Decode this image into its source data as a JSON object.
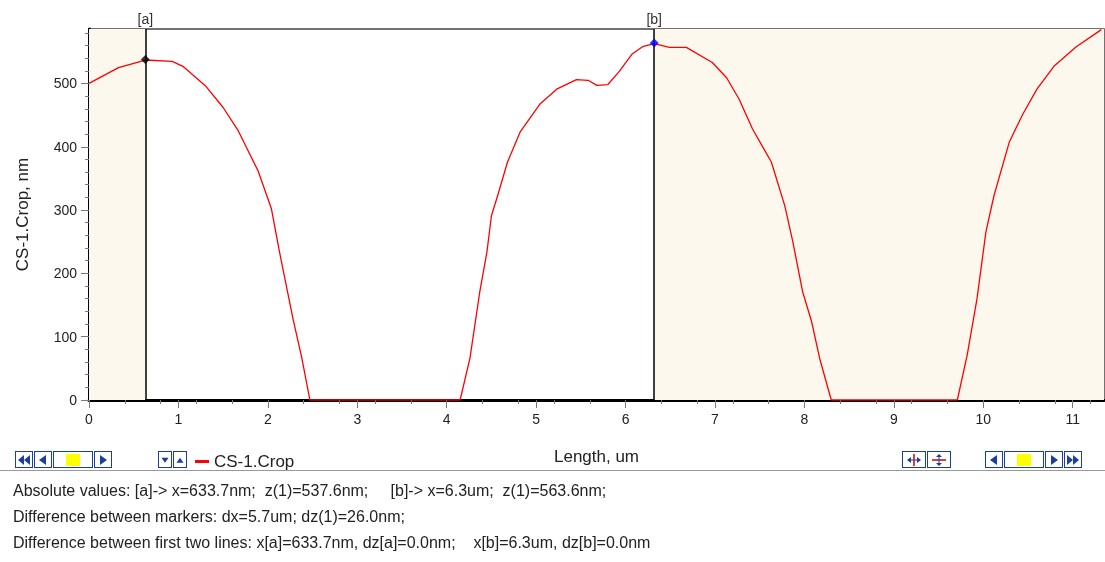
{
  "chart_data": {
    "type": "line",
    "xlabel": "Length, um",
    "ylabel": "CS-1.Crop, nm",
    "xlim": [
      0,
      11.35
    ],
    "ylim": [
      0,
      586
    ],
    "xticks": [
      0,
      1,
      2,
      3,
      4,
      5,
      6,
      7,
      8,
      9,
      10,
      11
    ],
    "yticks": [
      0,
      100,
      200,
      300,
      400,
      500
    ],
    "grid": false,
    "legend": "bottom left",
    "series": [
      {
        "name": "CS-1.Crop",
        "color": "#ff0000",
        "marker": "none",
        "x": [
          0,
          0.33,
          0.63,
          0.93,
          1.05,
          1.31,
          1.5,
          1.67,
          1.89,
          2.04,
          2.13,
          2.28,
          2.38,
          2.47,
          4.15,
          4.26,
          4.37,
          4.45,
          4.5,
          4.57,
          4.68,
          4.82,
          5.04,
          5.23,
          5.45,
          5.58,
          5.68,
          5.8,
          5.93,
          6.07,
          6.19,
          6.32,
          6.49,
          6.68,
          6.97,
          7.13,
          7.27,
          7.42,
          7.63,
          7.78,
          7.87,
          7.98,
          8.08,
          8.17,
          8.3,
          9.71,
          9.82,
          9.93,
          10.03,
          10.12,
          10.29,
          10.44,
          10.6,
          10.79,
          11.04,
          11.32
        ],
        "values": [
          500,
          525,
          537,
          535,
          527,
          495,
          462,
          425,
          362,
          302,
          234,
          129,
          66,
          0,
          0,
          66,
          171,
          234,
          291,
          323,
          376,
          423,
          467,
          491,
          506,
          505,
          497,
          498,
          519,
          546,
          558,
          563,
          557,
          557,
          533,
          509,
          475,
          428,
          376,
          307,
          250,
          171,
          124,
          66,
          0,
          0,
          71,
          160,
          266,
          323,
          407,
          451,
          491,
          527,
          558,
          585
        ]
      },
      {
        "type": "scatter",
        "color": "#000000",
        "marker": "diamond",
        "x": [
          0.63
        ],
        "values": [
          538
        ]
      },
      {
        "type": "scatter",
        "color": "#0000ff",
        "marker": "diamond",
        "x": [
          6.32
        ],
        "values": [
          564
        ]
      }
    ],
    "ref_lines": [
      {
        "axis": "x",
        "value": 0.63,
        "label": "[a]",
        "color": "#000000"
      },
      {
        "axis": "x",
        "value": 6.32,
        "label": "[b]",
        "color": "#000000"
      }
    ],
    "bands": [
      {
        "axis": "x",
        "from": 0,
        "to": 0.63,
        "color": "#fdf8ee"
      },
      {
        "axis": "x",
        "from": 6.32,
        "to": 11.35,
        "color": "#fdf8ee"
      }
    ],
    "annotations": [
      "Absolute values: [a]-> x=633.7nm;  z(1)=537.6nm;     [b]-> x=6.3um;  z(1)=563.6nm;",
      "Difference between markers: dx=5.7um; dz(1)=26.0nm;",
      "Difference between first two lines: x[a]=633.7nm, dz[a]=0.0nm;    x[b]=6.3um, dz[b]=0.0nm"
    ]
  }
}
